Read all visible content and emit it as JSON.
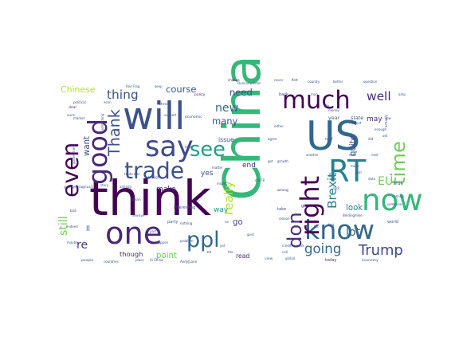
{
  "chart_data": {
    "type": "wordcloud",
    "colormap": "viridis",
    "background": "#ffffff",
    "words": [
      {
        "text": "China",
        "weight": 1.0,
        "color": "#35b779"
      },
      {
        "text": "think",
        "weight": 0.95,
        "color": "#440154"
      },
      {
        "text": "US",
        "weight": 0.78,
        "color": "#31688e"
      },
      {
        "text": "will",
        "weight": 0.74,
        "color": "#3b528b"
      },
      {
        "text": "one",
        "weight": 0.6,
        "color": "#482878"
      },
      {
        "text": "now",
        "weight": 0.58,
        "color": "#35b779"
      },
      {
        "text": "RT",
        "weight": 0.6,
        "color": "#26828e"
      },
      {
        "text": "say",
        "weight": 0.55,
        "color": "#3e4a89"
      },
      {
        "text": "know",
        "weight": 0.52,
        "color": "#31688e"
      },
      {
        "text": "much",
        "weight": 0.48,
        "color": "#440154"
      },
      {
        "text": "good",
        "weight": 0.52,
        "color": "#482878"
      },
      {
        "text": "right",
        "weight": 0.5,
        "color": "#440154"
      },
      {
        "text": "trade",
        "weight": 0.44,
        "color": "#3b528b"
      },
      {
        "text": "see",
        "weight": 0.4,
        "color": "#1f9e89"
      },
      {
        "text": "ppl",
        "weight": 0.42,
        "color": "#31688e"
      },
      {
        "text": "even",
        "weight": 0.44,
        "color": "#440154"
      },
      {
        "text": "time",
        "weight": 0.38,
        "color": "#6ece58"
      },
      {
        "text": "don",
        "weight": 0.38,
        "color": "#472d7b"
      },
      {
        "text": "Thank",
        "weight": 0.3,
        "color": "#3b528b"
      },
      {
        "text": "Trump",
        "weight": 0.28,
        "color": "#3e4a89"
      },
      {
        "text": "going",
        "weight": 0.26,
        "color": "#31688e"
      },
      {
        "text": "thing",
        "weight": 0.24,
        "color": "#3b528b"
      },
      {
        "text": "well",
        "weight": 0.24,
        "color": "#482878"
      },
      {
        "text": "Brexit",
        "weight": 0.24,
        "color": "#26828e"
      },
      {
        "text": "really",
        "weight": 0.24,
        "color": "#b5de2b"
      },
      {
        "text": "still",
        "weight": 0.22,
        "color": "#6ece58"
      },
      {
        "text": "new",
        "weight": 0.22,
        "color": "#31688e"
      },
      {
        "text": "lot",
        "weight": 0.22,
        "color": "#31688e"
      },
      {
        "text": "EU",
        "weight": 0.22,
        "color": "#6ece58"
      },
      {
        "text": "re",
        "weight": 0.22,
        "color": "#443983"
      },
      {
        "text": "many",
        "weight": 0.18,
        "color": "#3b528b"
      },
      {
        "text": "need",
        "weight": 0.18,
        "color": "#3e4a89"
      },
      {
        "text": "course",
        "weight": 0.18,
        "color": "#3b528b"
      },
      {
        "text": "Chinese",
        "weight": 0.17,
        "color": "#b5de2b"
      },
      {
        "text": "point",
        "weight": 0.16,
        "color": "#6ece58"
      },
      {
        "text": "want",
        "weight": 0.16,
        "color": "#3e4a89"
      },
      {
        "text": "quite",
        "weight": 0.16,
        "color": "#3e4a89"
      },
      {
        "text": "look",
        "weight": 0.16,
        "color": "#26828e"
      },
      {
        "text": "go",
        "weight": 0.16,
        "color": "#3e4a89"
      },
      {
        "text": "way",
        "weight": 0.14,
        "color": "#1f9e89"
      },
      {
        "text": "make",
        "weight": 0.14,
        "color": "#482878"
      },
      {
        "text": "end",
        "weight": 0.14,
        "color": "#482878"
      },
      {
        "text": "yes",
        "weight": 0.14,
        "color": "#3e4a89"
      },
      {
        "text": "may",
        "weight": 0.14,
        "color": "#482878"
      },
      {
        "text": "issue",
        "weight": 0.12,
        "color": "#3b528b"
      },
      {
        "text": "though",
        "weight": 0.13,
        "color": "#482878"
      },
      {
        "text": "read",
        "weight": 0.12,
        "color": "#482878"
      },
      {
        "text": "ll",
        "weight": 0.14,
        "color": "#3b528b"
      },
      {
        "text": "year",
        "weight": 0.1,
        "color": "#31688e"
      },
      {
        "text": "state",
        "weight": 0.1,
        "color": "#31688e"
      },
      {
        "text": "true",
        "weight": 0.09,
        "color": "#3b528b"
      },
      {
        "text": "world",
        "weight": 0.08,
        "color": "#3b528b"
      },
      {
        "text": "today",
        "weight": 0.08,
        "color": "#482878"
      },
      {
        "text": "take",
        "weight": 0.08,
        "color": "#3b528b"
      },
      {
        "text": "interesting",
        "weight": 0.08,
        "color": "#3b528b"
      },
      {
        "text": "party",
        "weight": 0.08,
        "color": "#31688e"
      },
      {
        "text": "back",
        "weight": 0.08,
        "color": "#3b528b"
      },
      {
        "text": "great",
        "weight": 0.08,
        "color": "#482878"
      },
      {
        "text": "economy",
        "weight": 0.07,
        "color": "#3b528b"
      },
      {
        "text": "economic",
        "weight": 0.07,
        "color": "#3b528b"
      },
      {
        "text": "policy",
        "weight": 0.07,
        "color": "#482878"
      },
      {
        "text": "thread",
        "weight": 0.07,
        "color": "#3b528b"
      },
      {
        "text": "deal",
        "weight": 0.07,
        "color": "#482878"
      },
      {
        "text": "sure",
        "weight": 0.07,
        "color": "#3b528b"
      },
      {
        "text": "people",
        "weight": 0.07,
        "color": "#3b528b"
      },
      {
        "text": "georgemagnus1",
        "weight": 0.07,
        "color": "#3b528b"
      },
      {
        "text": "always",
        "weight": 0.07,
        "color": "#31688e"
      },
      {
        "text": "mean",
        "weight": 0.07,
        "color": "#31688e"
      },
      {
        "text": "long",
        "weight": 0.07,
        "color": "#3b528b"
      },
      {
        "text": "wrong",
        "weight": 0.07,
        "color": "#482878"
      },
      {
        "text": "view",
        "weight": 0.07,
        "color": "#31688e"
      },
      {
        "text": "global",
        "weight": 0.06,
        "color": "#31688e"
      },
      {
        "text": "trade war",
        "weight": 0.06,
        "color": "#3b528b"
      },
      {
        "text": "Red Flag",
        "weight": 0.05,
        "color": "#31688e"
      },
      {
        "text": "Duncanweldon",
        "weight": 0.05,
        "color": "#3b528b"
      },
      {
        "text": "question",
        "weight": 0.05,
        "color": "#3b528b"
      },
      {
        "text": "country",
        "weight": 0.05,
        "color": "#3b528b"
      },
      {
        "text": "change",
        "weight": 0.05,
        "color": "#482878"
      },
      {
        "text": "never",
        "weight": 0.05,
        "color": "#3b528b"
      },
      {
        "text": "first",
        "weight": 0.05,
        "color": "#482878"
      },
      {
        "text": "better",
        "weight": 0.05,
        "color": "#3b528b"
      },
      {
        "text": "another",
        "weight": 0.05,
        "color": "#3b528b"
      },
      {
        "text": "growth",
        "weight": 0.05,
        "color": "#3b528b"
      },
      {
        "text": "political",
        "weight": 0.05,
        "color": "#3b528b"
      },
      {
        "text": "interest",
        "weight": 0.05,
        "color": "#3b528b"
      },
      {
        "text": "either",
        "weight": 0.05,
        "color": "#31688e"
      },
      {
        "text": "something",
        "weight": 0.05,
        "color": "#3b528b"
      },
      {
        "text": "tariff",
        "weight": 0.05,
        "color": "#3b528b"
      },
      {
        "text": "Beldingmike",
        "weight": 0.05,
        "color": "#3b528b"
      },
      {
        "text": "djlc78",
        "weight": 0.05,
        "color": "#3b528b"
      },
      {
        "text": "enough",
        "weight": 0.05,
        "color": "#3b528b"
      },
      {
        "text": "coming",
        "weight": 0.05,
        "color": "#3b528b"
      },
      {
        "text": "someone",
        "weight": 0.05,
        "color": "#3b528b"
      },
      {
        "text": "already",
        "weight": 0.05,
        "color": "#3b528b"
      },
      {
        "text": "nothing",
        "weight": 0.05,
        "color": "#3b528b"
      },
      {
        "text": "thought",
        "weight": 0.05,
        "color": "#3b528b"
      },
      {
        "text": "might",
        "weight": 0.05,
        "color": "#3b528b"
      },
      {
        "text": "problem",
        "weight": 0.05,
        "color": "#3b528b"
      },
      {
        "text": "support",
        "weight": 0.05,
        "color": "#3b528b"
      },
      {
        "text": "government",
        "weight": 0.05,
        "color": "#3b528b"
      },
      {
        "text": "market",
        "weight": 0.05,
        "color": "#3b528b"
      },
      {
        "text": "happen",
        "weight": 0.05,
        "color": "#3b528b"
      },
      {
        "text": "place",
        "weight": 0.05,
        "color": "#3b528b"
      },
      {
        "text": "Xi China",
        "weight": 0.05,
        "color": "#3b528b"
      },
      {
        "text": "AndyJLane",
        "weight": 0.05,
        "color": "#3b528b"
      },
      {
        "text": "countries",
        "weight": 0.05,
        "color": "#3b528b"
      },
      {
        "text": "reason",
        "weight": 0.05,
        "color": "#3b528b"
      },
      {
        "text": "credit",
        "weight": 0.05,
        "color": "#3b528b"
      },
      {
        "text": "work",
        "weight": 0.05,
        "color": "#3b528b"
      },
      {
        "text": "agree",
        "weight": 0.05,
        "color": "#3b528b"
      },
      {
        "text": "debt",
        "weight": 0.05,
        "color": "#3b528b"
      },
      {
        "text": "next",
        "weight": 0.05,
        "color": "#3b528b"
      },
      {
        "text": "actually",
        "weight": 0.05,
        "color": "#3b528b"
      },
      {
        "text": "Indeed",
        "weight": 0.05,
        "color": "#3b528b"
      },
      {
        "text": "story",
        "weight": 0.05,
        "color": "#3b528b"
      },
      {
        "text": "maybe",
        "weight": 0.05,
        "color": "#3b528b"
      },
      {
        "text": "econ",
        "weight": 0.05,
        "color": "#3b528b"
      },
      {
        "text": "keep",
        "weight": 0.05,
        "color": "#3b528b"
      },
      {
        "text": "day",
        "weight": 0.05,
        "color": "#3b528b"
      },
      {
        "text": "must",
        "weight": 0.05,
        "color": "#3b528b"
      },
      {
        "text": "bad",
        "weight": 0.05,
        "color": "#3b528b"
      },
      {
        "text": "money",
        "weight": 0.05,
        "color": "#3b528b"
      },
      {
        "text": "call",
        "weight": 0.05,
        "color": "#3b528b"
      },
      {
        "text": "yet",
        "weight": 0.05,
        "color": "#3b528b"
      },
      {
        "text": "tho",
        "weight": 0.05,
        "color": "#3b528b"
      },
      {
        "text": "govt",
        "weight": 0.05,
        "color": "#3b528b"
      },
      {
        "text": "man",
        "weight": 0.05,
        "color": "#3b528b"
      },
      {
        "text": "bit",
        "weight": 0.05,
        "color": "#3b528b"
      },
      {
        "text": "ve",
        "weight": 0.05,
        "color": "#3b528b"
      },
      {
        "text": "UK",
        "weight": 0.05,
        "color": "#3b528b"
      },
      {
        "text": "part",
        "weight": 0.05,
        "color": "#3b528b"
      },
      {
        "text": "old",
        "weight": 0.05,
        "color": "#3b528b"
      },
      {
        "text": "low",
        "weight": 0.05,
        "color": "#3b528b"
      },
      {
        "text": "amp",
        "weight": 0.05,
        "color": "#3b528b"
      },
      {
        "text": "got",
        "weight": 0.05,
        "color": "#3b528b"
      },
      {
        "text": "did",
        "weight": 0.05,
        "color": "#3b528b"
      },
      {
        "text": "real",
        "weight": 0.05,
        "color": "#3b528b"
      },
      {
        "text": "data",
        "weight": 0.05,
        "color": "#3b528b"
      },
      {
        "text": "lack",
        "weight": 0.05,
        "color": "#3b528b"
      },
      {
        "text": "matter",
        "weight": 0.05,
        "color": "#3b528b"
      },
      {
        "text": "fact",
        "weight": 0.05,
        "color": "#3b528b"
      }
    ]
  }
}
